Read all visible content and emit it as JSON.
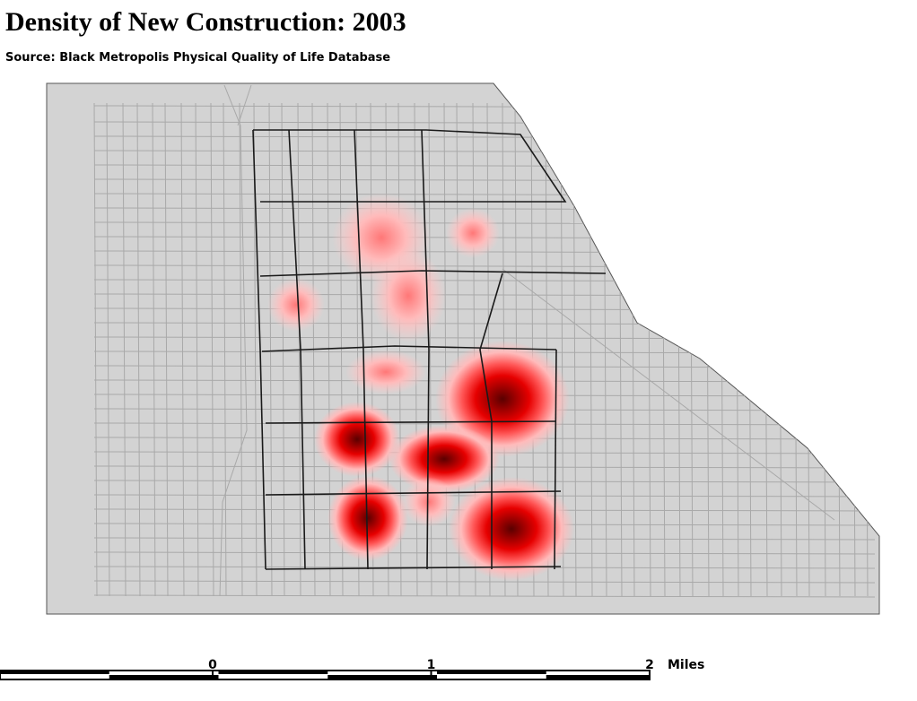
{
  "title": "Density of New Construction: 2003",
  "source": "Source: Black Metropolis Physical Quality of Life Database",
  "scale_bar": {
    "ticks": [
      0,
      1,
      2
    ],
    "unit": "Miles"
  }
}
